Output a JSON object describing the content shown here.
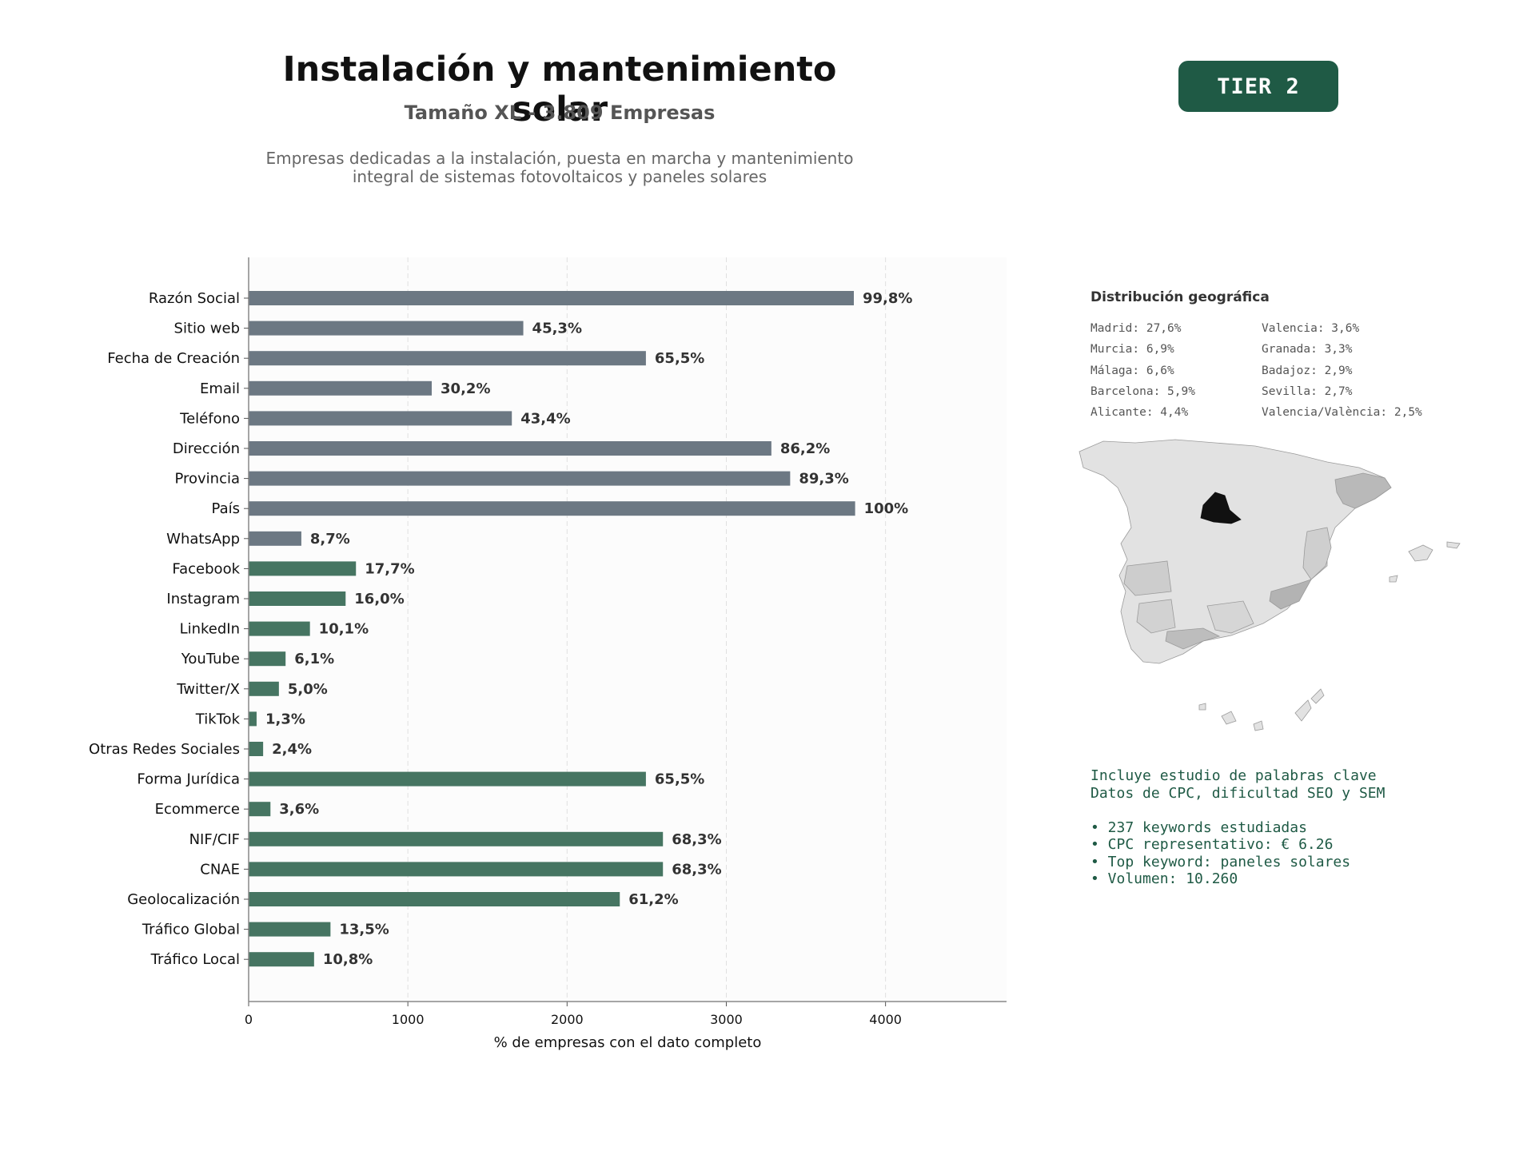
{
  "header": {
    "title": "Instalación y mantenimiento solar",
    "subtitle": "Tamaño XL - 3.809 Empresas",
    "description_line1": "Empresas dedicadas a la instalación, puesta en marcha y mantenimiento",
    "description_line2": "integral de sistemas fotovoltaicos y paneles solares",
    "tier": "TIER 2"
  },
  "colors": {
    "gray_bar": "#6c7883",
    "green_bar": "#467562",
    "accent": "#1f5a45",
    "map_highlight": "#111111"
  },
  "chart_data": {
    "type": "bar",
    "orientation": "horizontal",
    "xlabel": "% de empresas con el dato completo",
    "xlim": [
      0,
      4760
    ],
    "xticks": [
      0,
      1000,
      2000,
      3000,
      4000
    ],
    "grid": "vertical dashed",
    "categories": [
      "Razón Social",
      "Sitio web",
      "Fecha de Creación",
      "Email",
      "Teléfono",
      "Dirección",
      "Provincia",
      "País",
      "WhatsApp",
      "Facebook",
      "Instagram",
      "LinkedIn",
      "YouTube",
      "Twitter/X",
      "TikTok",
      "Otras Redes Sociales",
      "Forma Jurídica",
      "Ecommerce",
      "NIF/CIF",
      "CNAE",
      "Geolocalización",
      "Tráfico Global",
      "Tráfico Local"
    ],
    "values": [
      3801,
      1725,
      2495,
      1150,
      1653,
      3283,
      3401,
      3809,
      331,
      674,
      609,
      385,
      232,
      190,
      50,
      91,
      2495,
      137,
      2602,
      2602,
      2331,
      514,
      411
    ],
    "labels": [
      "99,8%",
      "45,3%",
      "65,5%",
      "30,2%",
      "43,4%",
      "86,2%",
      "89,3%",
      "100%",
      "8,7%",
      "17,7%",
      "16,0%",
      "10,1%",
      "6,1%",
      "5,0%",
      "1,3%",
      "2,4%",
      "65,5%",
      "3,6%",
      "68,3%",
      "68,3%",
      "61,2%",
      "13,5%",
      "10,8%"
    ],
    "groups": [
      "gray",
      "gray",
      "gray",
      "gray",
      "gray",
      "gray",
      "gray",
      "gray",
      "gray",
      "green",
      "green",
      "green",
      "green",
      "green",
      "green",
      "green",
      "green",
      "green",
      "green",
      "green",
      "green",
      "green",
      "green"
    ]
  },
  "geo": {
    "title": "Distribución geográfica",
    "items": [
      "Madrid: 27,6%",
      "Valencia: 3,6%",
      "Murcia: 6,9%",
      "Granada: 3,3%",
      "Málaga: 6,6%",
      "Badajoz: 2,9%",
      "Barcelona: 5,9%",
      "Sevilla: 2,7%",
      "Alicante: 4,4%",
      "Valencia/València: 2,5%"
    ]
  },
  "keywords": {
    "line1": "Incluye estudio de palabras clave",
    "line2": "Datos de CPC, dificultad SEO y SEM",
    "b1": "• 237 keywords estudiadas",
    "b2": "• CPC representativo: € 6.26",
    "b3": "• Top keyword: paneles solares",
    "b4": "• Volumen: 10.260"
  }
}
